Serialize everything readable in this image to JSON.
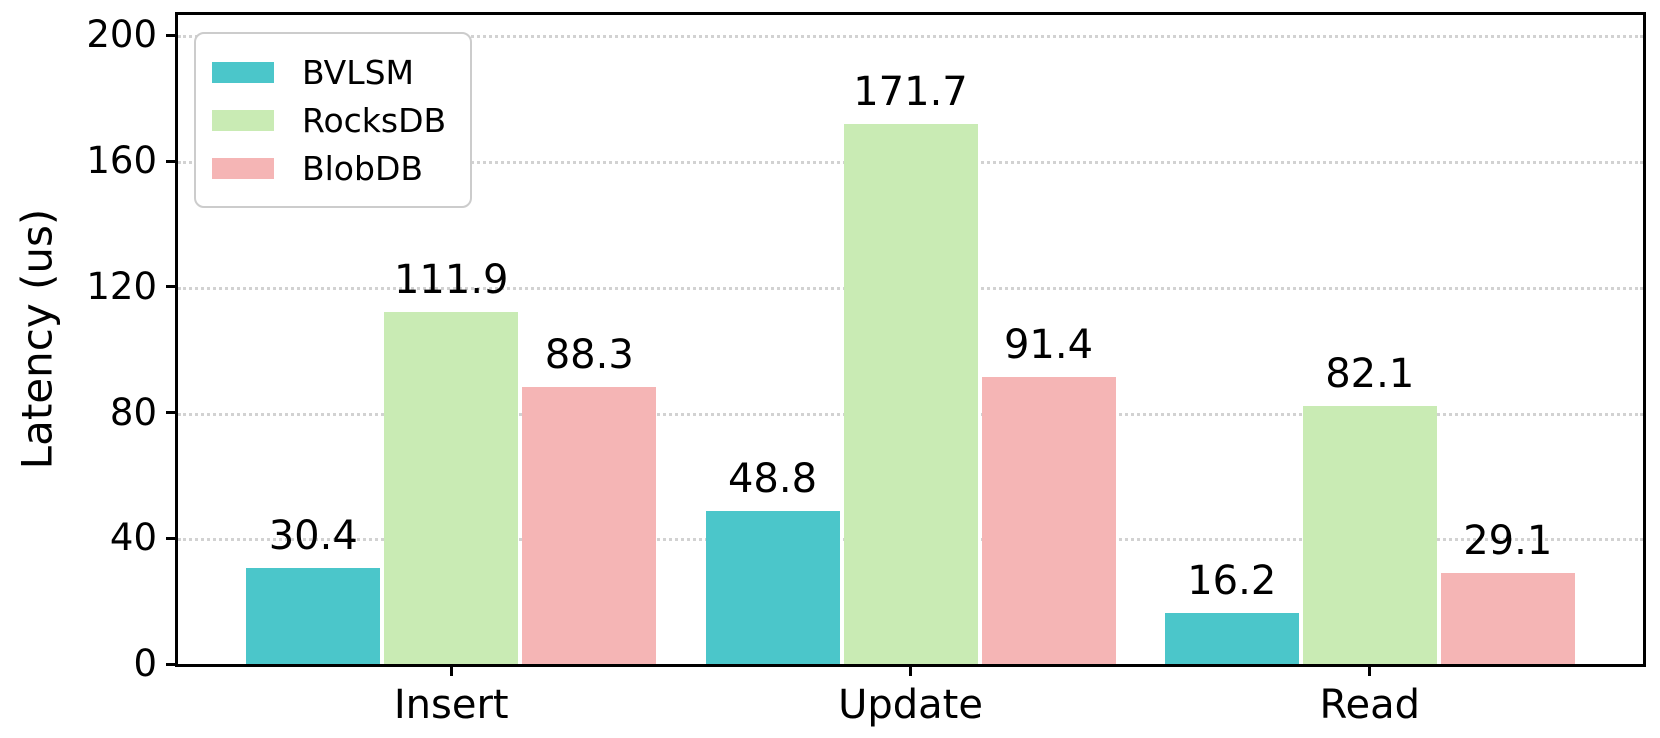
{
  "chart_data": {
    "type": "bar",
    "title": "",
    "xlabel": "",
    "ylabel": "Latency (us)",
    "categories": [
      "Insert",
      "Update",
      "Read"
    ],
    "series": [
      {
        "name": "BVLSM",
        "color": "#4BC6CA",
        "values": [
          30.4,
          48.8,
          16.2
        ]
      },
      {
        "name": "RocksDB",
        "color": "#C9EBB4",
        "values": [
          111.9,
          171.7,
          82.1
        ]
      },
      {
        "name": "BlobDB",
        "color": "#F5B5B5",
        "values": [
          88.3,
          91.4,
          29.1
        ]
      }
    ],
    "yticks": [
      0,
      40,
      80,
      120,
      160,
      200
    ],
    "ylim": [
      0,
      200
    ],
    "grid": "horizontal dotted",
    "bar_value_labels_shown": true,
    "legend_position": "upper-left"
  },
  "style_colors": {
    "axis": "#000000",
    "grid": "#d2d2d2",
    "legend_border": "#cccccc",
    "background": "#ffffff",
    "text": "#000000"
  }
}
